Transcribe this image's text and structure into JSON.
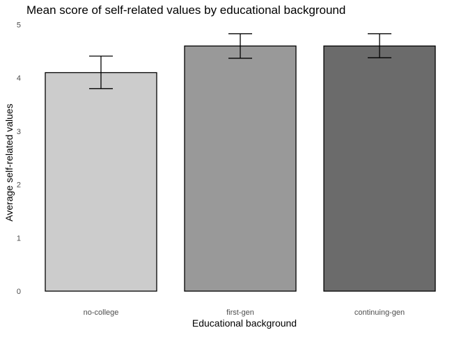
{
  "chart_data": {
    "type": "bar",
    "title": "Mean score of self-related values by educational background",
    "xlabel": "Educational background",
    "ylabel": "Average self-related values",
    "categories": [
      "no-college",
      "first-gen",
      "continuing-gen"
    ],
    "values": [
      4.1,
      4.6,
      4.6
    ],
    "error_low": [
      3.8,
      4.37,
      4.38
    ],
    "error_high": [
      4.41,
      4.83,
      4.83
    ],
    "colors": [
      "#cccccc",
      "#999999",
      "#6b6b6b"
    ],
    "ylim": [
      0,
      5
    ],
    "yticks": [
      "0",
      "1",
      "2",
      "3",
      "4",
      "5"
    ],
    "grid": false,
    "legend": "none"
  }
}
